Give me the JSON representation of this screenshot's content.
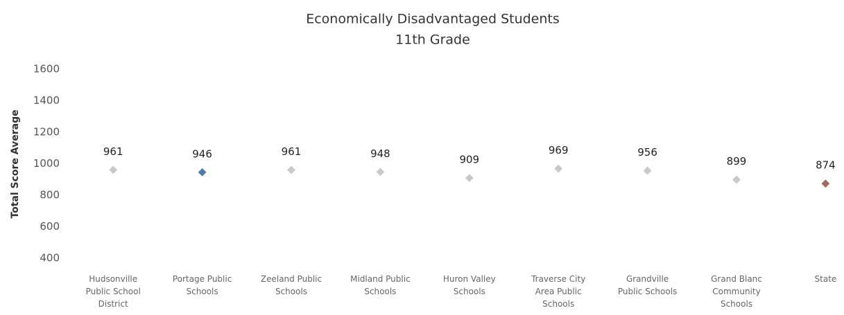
{
  "chart_data": {
    "type": "dot",
    "title": "Economically Disadvantaged Students",
    "subtitle": "11th Grade",
    "y_label": "Total Score Average",
    "categories": [
      "Hudsonville Public School District",
      "Portage Public Schools",
      "Zeeland Public Schools",
      "Midland Public Schools",
      "Huron Valley Schools",
      "Traverse City Area Public Schools",
      "Grandville Public Schools",
      "Grand Blanc Community Schools",
      "State"
    ],
    "values": [
      961,
      946,
      961,
      948,
      909,
      969,
      956,
      899,
      874
    ],
    "colors": [
      "#c9c9c9",
      "#4f7ba8",
      "#c9c9c9",
      "#c9c9c9",
      "#c9c9c9",
      "#c9c9c9",
      "#c9c9c9",
      "#c9c9c9",
      "#a06b5c"
    ],
    "ylim": [
      400,
      1600
    ],
    "yticks": [
      400,
      600,
      800,
      1000,
      1200,
      1400,
      1600
    ],
    "grid": false
  }
}
